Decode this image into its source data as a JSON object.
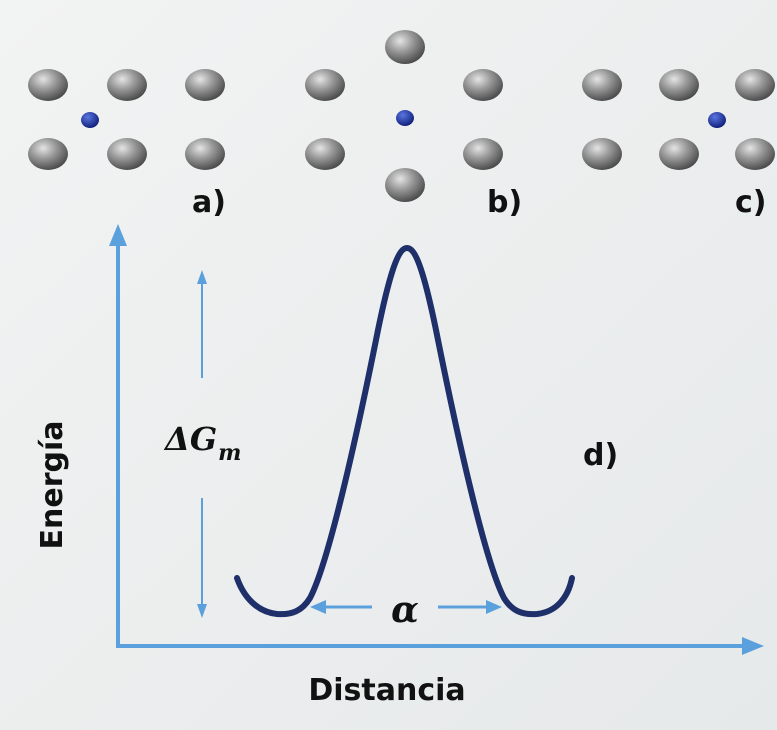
{
  "panels": {
    "a": "a)",
    "b": "b)",
    "c": "c)",
    "d": "d)"
  },
  "axes": {
    "y_label": "Energía",
    "x_label": "Distancia"
  },
  "annotations": {
    "barrier_label": "ΔG",
    "barrier_subscript": "m",
    "spacing_label": "α"
  },
  "colors": {
    "axis": "#5aa0dc",
    "curve": "#1e2f6a",
    "host_atom": "#8c8c8c",
    "interstitial_atom": "#1a2f9a",
    "background": "#eef0f0"
  }
}
